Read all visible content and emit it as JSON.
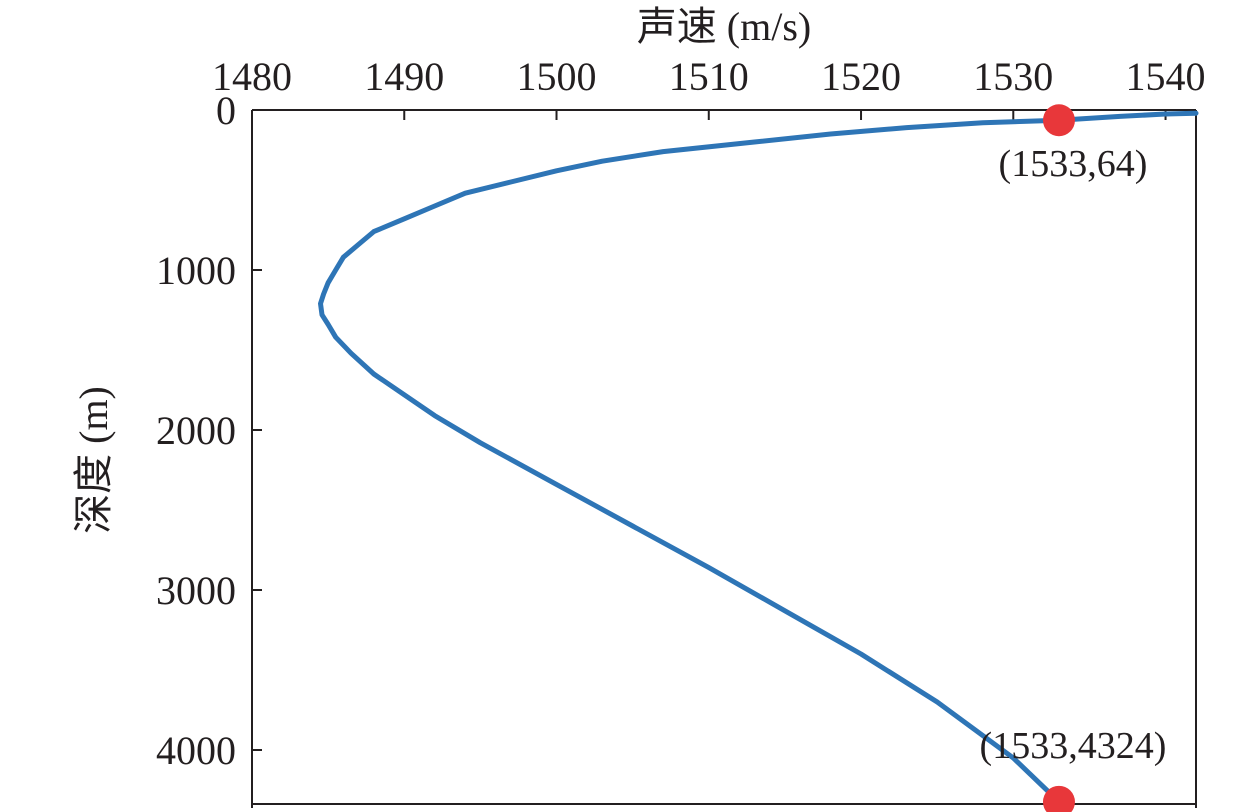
{
  "chart_data": {
    "type": "line",
    "title": "",
    "xlabel": "声速 (m/s)",
    "ylabel": "深度 (m)",
    "x_axis_position": "top",
    "y_axis_inverted": true,
    "xlim": [
      1480,
      1542
    ],
    "ylim": [
      0,
      4350
    ],
    "x_ticks": [
      1480,
      1490,
      1500,
      1510,
      1520,
      1530,
      1540
    ],
    "y_ticks": [
      0,
      1000,
      2000,
      3000,
      4000
    ],
    "grid": false,
    "legend": "none",
    "colors": {
      "line": "#2e75b6",
      "marker": "#e8373a",
      "axis": "#231f20"
    },
    "series": [
      {
        "x": [
          1542,
          1540,
          1537,
          1533,
          1528,
          1523,
          1518,
          1513,
          1507,
          1503,
          1500,
          1497,
          1494,
          1492,
          1490,
          1488,
          1487,
          1486,
          1485.5,
          1485,
          1484.7,
          1484.5,
          1484.6,
          1485,
          1485.5,
          1486.5,
          1488,
          1490,
          1492,
          1495,
          1500,
          1505,
          1510,
          1515,
          1520,
          1525,
          1530,
          1533
        ],
        "y": [
          20,
          25,
          40,
          64,
          80,
          110,
          150,
          200,
          260,
          320,
          380,
          450,
          520,
          600,
          680,
          760,
          840,
          920,
          1000,
          1080,
          1150,
          1210,
          1280,
          1340,
          1420,
          1520,
          1650,
          1780,
          1910,
          2080,
          2340,
          2600,
          2860,
          3130,
          3400,
          3700,
          4050,
          4324
        ]
      }
    ],
    "points": [
      {
        "x": 1533,
        "y": 64,
        "label": "(1533,64)",
        "label_pos": "below"
      },
      {
        "x": 1533,
        "y": 4324,
        "label": "(1533,4324)",
        "label_pos": "above"
      }
    ]
  }
}
